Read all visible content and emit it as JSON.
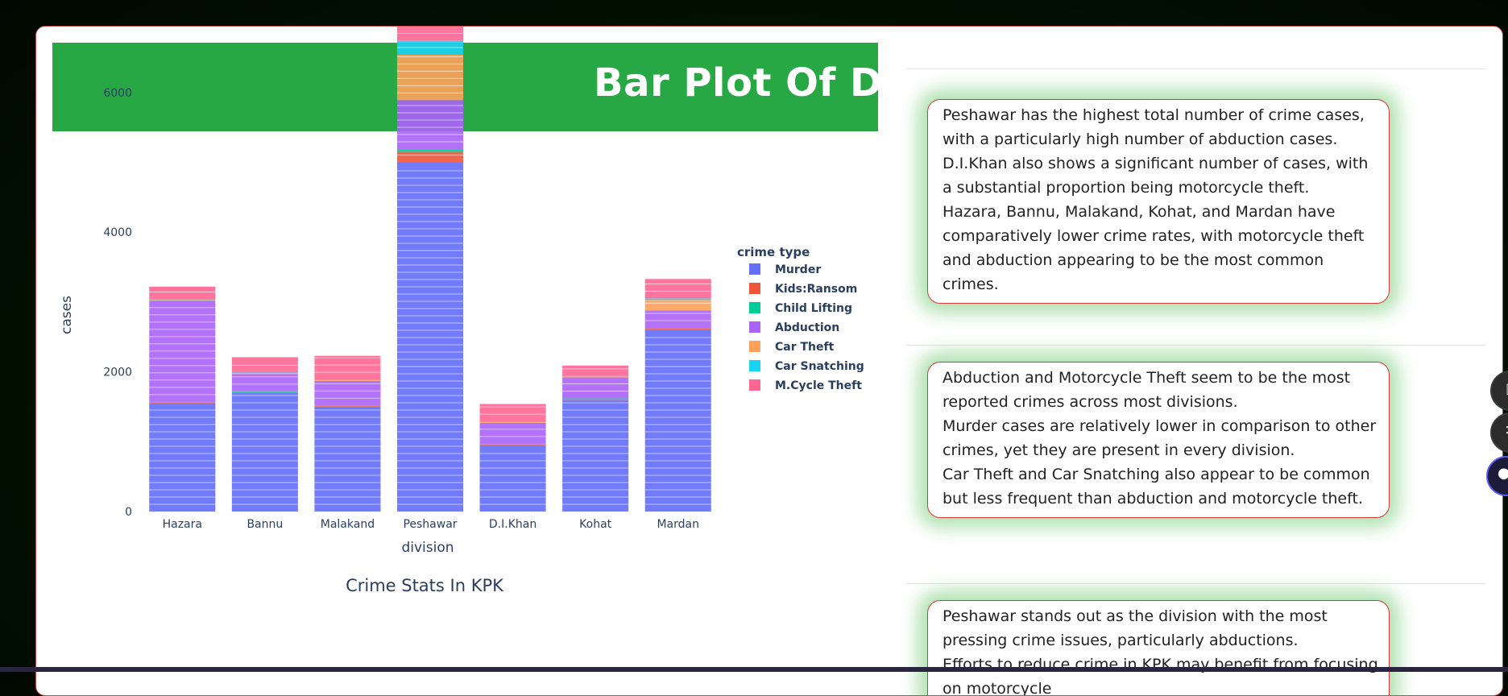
{
  "banner": {
    "title": "Bar Plot Of Diffe"
  },
  "chart_data": {
    "type": "bar",
    "stacked": true,
    "title": "Crime Stats In KPK",
    "xlabel": "division",
    "ylabel": "cases",
    "legend_title": "crime type",
    "legend_position": "right",
    "ylim": [
      0,
      7400
    ],
    "yticks": [
      0,
      2000,
      4000,
      6000
    ],
    "categories": [
      "Hazara",
      "Bannu",
      "Malakand",
      "Peshawar",
      "D.I.Khan",
      "Kohat",
      "Mardan"
    ],
    "series": [
      {
        "name": "Murder",
        "color": "#636efa",
        "values": [
          1550,
          1700,
          1500,
          5000,
          950,
          1600,
          2600
        ]
      },
      {
        "name": "Kids:Ransom",
        "color": "#ef553b",
        "values": [
          10,
          10,
          10,
          150,
          10,
          10,
          20
        ]
      },
      {
        "name": "Child Lifting",
        "color": "#00cc96",
        "values": [
          10,
          10,
          10,
          40,
          10,
          10,
          10
        ]
      },
      {
        "name": "Abduction",
        "color": "#ab63fa",
        "values": [
          1450,
          250,
          350,
          700,
          300,
          300,
          250
        ]
      },
      {
        "name": "Car Theft",
        "color": "#ffa15a",
        "values": [
          10,
          10,
          10,
          650,
          10,
          10,
          150
        ]
      },
      {
        "name": "Car Snatching",
        "color": "#19d3f3",
        "values": [
          10,
          10,
          10,
          200,
          10,
          10,
          20
        ]
      },
      {
        "name": "M.Cycle Theft",
        "color": "#ff6692",
        "values": [
          180,
          220,
          340,
          660,
          250,
          150,
          280
        ]
      }
    ]
  },
  "insights": [
    {
      "lines": [
        "Peshawar has the highest total number of crime cases, with a particularly high number of abduction cases.",
        "D.I.Khan also shows a significant number of cases, with a substantial proportion being motorcycle theft.",
        "Hazara, Bannu, Malakand, Kohat, and Mardan have comparatively lower crime rates, with motorcycle theft and abduction appearing to be the most common crimes."
      ]
    },
    {
      "lines": [
        "Abduction and Motorcycle Theft seem to be the most reported crimes across most divisions.",
        "Murder cases are relatively lower in comparison to other crimes, yet they are present in every division.",
        "Car Theft and Car Snatching also appear to be common but less frequent than abduction and motorcycle theft."
      ]
    },
    {
      "lines": [
        "Peshawar stands out as the division with the most pressing crime issues, particularly abductions.",
        "Efforts to reduce crime in KPK may benefit from focusing on motorcycle"
      ]
    }
  ]
}
